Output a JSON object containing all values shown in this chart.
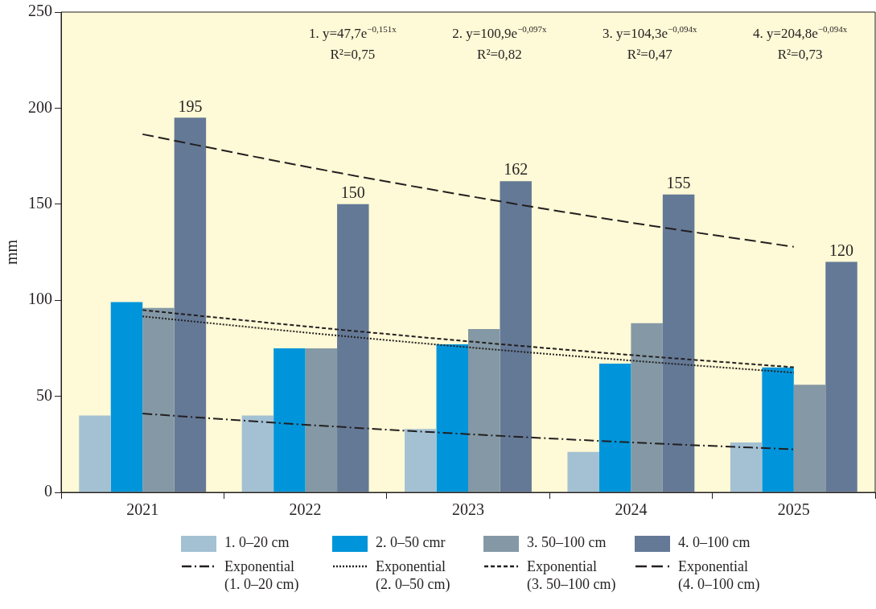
{
  "chart_data": {
    "type": "bar",
    "ylabel": "mm",
    "categories": [
      "2021",
      "2022",
      "2023",
      "2024",
      "2025"
    ],
    "ylim": [
      0,
      250
    ],
    "yticks": [
      0,
      50,
      100,
      150,
      200,
      250
    ],
    "grid": false,
    "legend": "bottom",
    "series": [
      {
        "name": "1. 0–20 cm",
        "color": "#a3c1d3",
        "values": [
          40,
          40,
          33,
          21,
          26
        ]
      },
      {
        "name": "2. 0–50 cmr",
        "color": "#0095da",
        "values": [
          99,
          75,
          77,
          67,
          65
        ]
      },
      {
        "name": "3. 50–100 cm",
        "color": "#8499a5",
        "values": [
          96,
          75,
          85,
          88,
          56
        ]
      },
      {
        "name": "4. 0–100 cm",
        "color": "#647996",
        "values": [
          195,
          150,
          162,
          155,
          120
        ],
        "value_labels": [
          "195",
          "150",
          "162",
          "155",
          "120"
        ]
      },
      {
        "type": "line",
        "name": "Exponential\n(1. 0–20 cm)",
        "color": "#231f20",
        "line_style": "dashdot",
        "values": [
          41,
          35.2,
          30.3,
          26,
          22.4
        ]
      },
      {
        "type": "line",
        "name": "Exponential\n(2. 0–50 cm)",
        "color": "#231f20",
        "line_style": "dotted",
        "values": [
          91.6,
          83.2,
          75.5,
          68.6,
          62.3
        ]
      },
      {
        "type": "line",
        "name": "Exponential\n(3. 50–100 cm)",
        "color": "#231f20",
        "line_style": "dashed",
        "values": [
          94.9,
          86.4,
          78.6,
          71.5,
          65.1
        ]
      },
      {
        "type": "line",
        "name": "Exponential\n(4. 0–100 cm)",
        "color": "#231f20",
        "line_style": "longdash",
        "values": [
          186.4,
          169.6,
          154.3,
          140.4,
          127.8
        ]
      }
    ],
    "annotations": [
      "1. y=47,7e$^{−0,151x}$\nR²=0,75",
      "2. y=100,9e$^{−0,097x}$\nR²=0,82",
      "3. y=104,3e$^{−0,094x}$\nR²=0,47",
      "4. y=204,8e$^{−0,094x}$\nR²=0,73"
    ]
  }
}
